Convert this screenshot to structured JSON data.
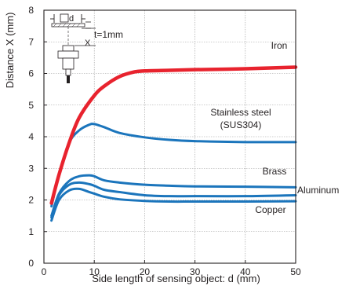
{
  "chart_data": {
    "type": "line",
    "title": "",
    "xlabel": "Side length of sensing object: d (mm)",
    "ylabel": "Distance X (mm)",
    "xlim": [
      0,
      50
    ],
    "ylim": [
      0,
      8
    ],
    "x_ticks": [
      0,
      10,
      20,
      30,
      40,
      50
    ],
    "y_ticks": [
      0,
      1,
      2,
      3,
      4,
      5,
      6,
      7,
      8
    ],
    "grid": true,
    "legend": "direct labels",
    "inset": {
      "label_d": "d",
      "label_x": "X",
      "label_t": "t=1mm"
    },
    "series": [
      {
        "name": "Iron",
        "color": "#e8232e",
        "x": [
          1.5,
          3,
          5,
          7,
          10,
          12,
          15,
          18,
          20,
          25,
          30,
          40,
          50
        ],
        "y": [
          1.9,
          2.8,
          3.8,
          4.6,
          5.3,
          5.6,
          5.9,
          6.05,
          6.08,
          6.1,
          6.12,
          6.15,
          6.2
        ]
      },
      {
        "name": "Stainless steel\n(SUS304)",
        "color": "#1b75bc",
        "x": [
          1.5,
          3,
          5,
          7,
          9,
          10,
          12,
          15,
          20,
          25,
          30,
          40,
          50
        ],
        "y": [
          1.8,
          2.8,
          3.8,
          4.2,
          4.38,
          4.4,
          4.3,
          4.12,
          3.98,
          3.9,
          3.86,
          3.83,
          3.83
        ]
      },
      {
        "name": "Brass",
        "color": "#1b75bc",
        "x": [
          1.5,
          3,
          5,
          7,
          9,
          10,
          12,
          15,
          20,
          25,
          30,
          40,
          50
        ],
        "y": [
          1.5,
          2.2,
          2.6,
          2.75,
          2.78,
          2.75,
          2.62,
          2.55,
          2.48,
          2.45,
          2.43,
          2.42,
          2.4
        ]
      },
      {
        "name": "Aluminum",
        "color": "#1b75bc",
        "x": [
          1.5,
          3,
          5,
          7,
          9,
          10,
          12,
          15,
          20,
          25,
          30,
          40,
          50
        ],
        "y": [
          1.45,
          2.15,
          2.48,
          2.55,
          2.5,
          2.45,
          2.32,
          2.25,
          2.15,
          2.12,
          2.12,
          2.12,
          2.15
        ]
      },
      {
        "name": "Copper",
        "color": "#1b75bc",
        "x": [
          1.5,
          3,
          5,
          7,
          9,
          10,
          12,
          15,
          20,
          25,
          30,
          40,
          50
        ],
        "y": [
          1.35,
          2.0,
          2.3,
          2.35,
          2.25,
          2.2,
          2.1,
          2.02,
          1.97,
          1.95,
          1.95,
          1.95,
          1.96
        ]
      }
    ]
  }
}
